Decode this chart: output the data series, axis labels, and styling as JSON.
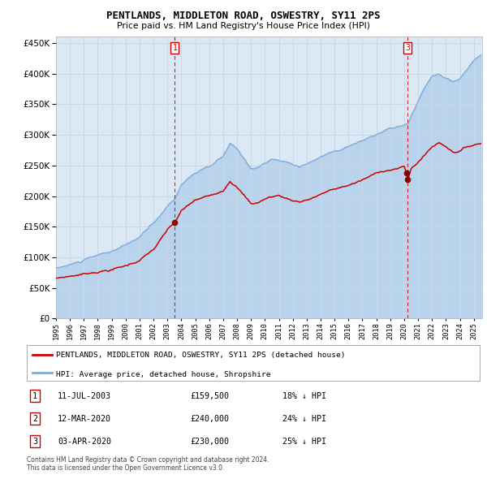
{
  "title": "PENTLANDS, MIDDLETON ROAD, OSWESTRY, SY11 2PS",
  "subtitle": "Price paid vs. HM Land Registry's House Price Index (HPI)",
  "legend_red": "PENTLANDS, MIDDLETON ROAD, OSWESTRY, SY11 2PS (detached house)",
  "legend_blue": "HPI: Average price, detached house, Shropshire",
  "footer1": "Contains HM Land Registry data © Crown copyright and database right 2024.",
  "footer2": "This data is licensed under the Open Government Licence v3.0.",
  "transactions": [
    {
      "label": "1",
      "date": "11-JUL-2003",
      "price": "159,500",
      "pct": "18%",
      "dir": "↓",
      "x_year": 2003.53
    },
    {
      "label": "2",
      "date": "12-MAR-2020",
      "price": "240,000",
      "pct": "24%",
      "dir": "↓",
      "x_year": 2020.19
    },
    {
      "label": "3",
      "date": "03-APR-2020",
      "price": "230,000",
      "pct": "25%",
      "dir": "↓",
      "x_year": 2020.26
    }
  ],
  "vlines": [
    {
      "x": 2003.53,
      "label": "1"
    },
    {
      "x": 2020.26,
      "label": "3"
    }
  ],
  "ylim": [
    0,
    460000
  ],
  "xlim": [
    1995.0,
    2025.6
  ],
  "yticks": [
    0,
    50000,
    100000,
    150000,
    200000,
    250000,
    300000,
    350000,
    400000,
    450000
  ],
  "plot_bg": "#dce9f5",
  "outer_bg": "#ffffff",
  "red_color": "#cc0000",
  "blue_color": "#7aabdc",
  "dot_color": "#880000",
  "vline_color": "#cc0000",
  "grid_color": "#c8d8e8",
  "title_color": "#000000"
}
